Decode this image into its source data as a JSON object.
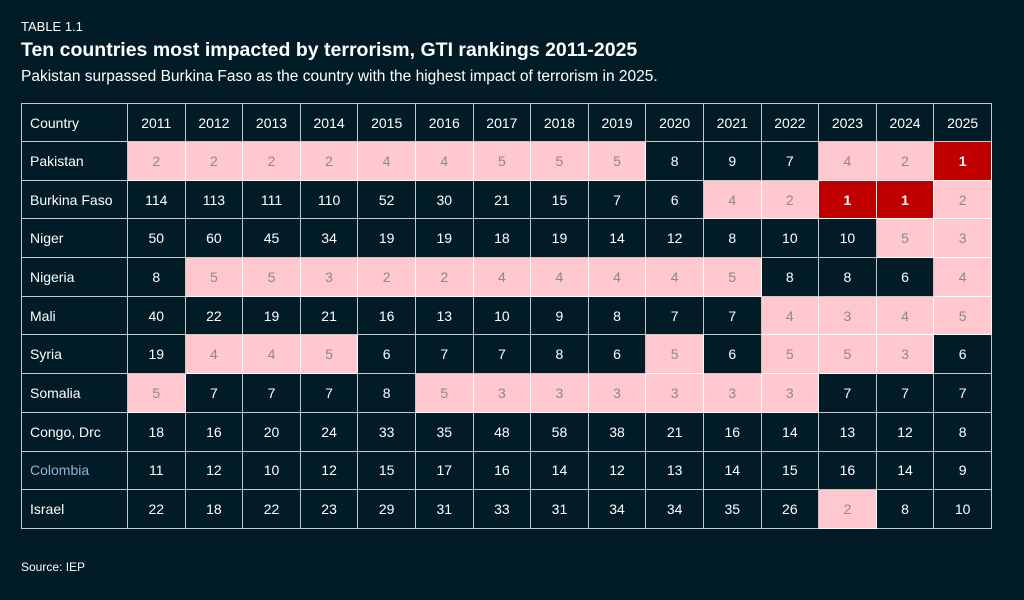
{
  "label": "TABLE 1.1",
  "title": "Ten countries most impacted by terrorism, GTI rankings 2011-2025",
  "subtitle": "Pakistan surpassed Burkina Faso as the country with the highest impact of terrorism in 2025.",
  "source": "Source: IEP",
  "colors": {
    "background": "#011c26",
    "rank_1": "#c00000",
    "rank_2_to_5": "#ffc7ce",
    "other": "#011c26",
    "highlighted_country": "#8ab4d8"
  },
  "chart_data": {
    "type": "table",
    "header_label": "Country",
    "columns": [
      "2011",
      "2012",
      "2013",
      "2014",
      "2015",
      "2016",
      "2017",
      "2018",
      "2019",
      "2020",
      "2021",
      "2022",
      "2023",
      "2024",
      "2025"
    ],
    "rows": [
      {
        "country": "Pakistan",
        "values": [
          2,
          2,
          2,
          2,
          4,
          4,
          5,
          5,
          5,
          8,
          9,
          7,
          4,
          2,
          1
        ]
      },
      {
        "country": "Burkina Faso",
        "values": [
          114,
          113,
          111,
          110,
          52,
          30,
          21,
          15,
          7,
          6,
          4,
          2,
          1,
          1,
          2
        ]
      },
      {
        "country": "Niger",
        "values": [
          50,
          60,
          45,
          34,
          19,
          19,
          18,
          19,
          14,
          12,
          8,
          10,
          10,
          5,
          3
        ]
      },
      {
        "country": "Nigeria",
        "values": [
          8,
          5,
          5,
          3,
          2,
          2,
          4,
          4,
          4,
          4,
          5,
          8,
          8,
          6,
          4
        ]
      },
      {
        "country": "Mali",
        "values": [
          40,
          22,
          19,
          21,
          16,
          13,
          10,
          9,
          8,
          7,
          7,
          4,
          3,
          4,
          5
        ]
      },
      {
        "country": "Syria",
        "values": [
          19,
          4,
          4,
          5,
          6,
          7,
          7,
          8,
          6,
          5,
          6,
          5,
          5,
          3,
          6
        ]
      },
      {
        "country": "Somalia",
        "values": [
          5,
          7,
          7,
          7,
          8,
          5,
          3,
          3,
          3,
          3,
          3,
          3,
          7,
          7,
          7
        ]
      },
      {
        "country": "Congo, Drc",
        "values": [
          18,
          16,
          20,
          24,
          33,
          35,
          48,
          58,
          38,
          21,
          16,
          14,
          13,
          12,
          8
        ]
      },
      {
        "country": "Colombia",
        "values": [
          11,
          12,
          10,
          12,
          15,
          17,
          16,
          14,
          12,
          13,
          14,
          15,
          16,
          14,
          9
        ],
        "highlighted": true
      },
      {
        "country": "Israel",
        "values": [
          22,
          18,
          22,
          23,
          29,
          31,
          33,
          31,
          34,
          34,
          35,
          26,
          2,
          8,
          10
        ]
      }
    ]
  }
}
